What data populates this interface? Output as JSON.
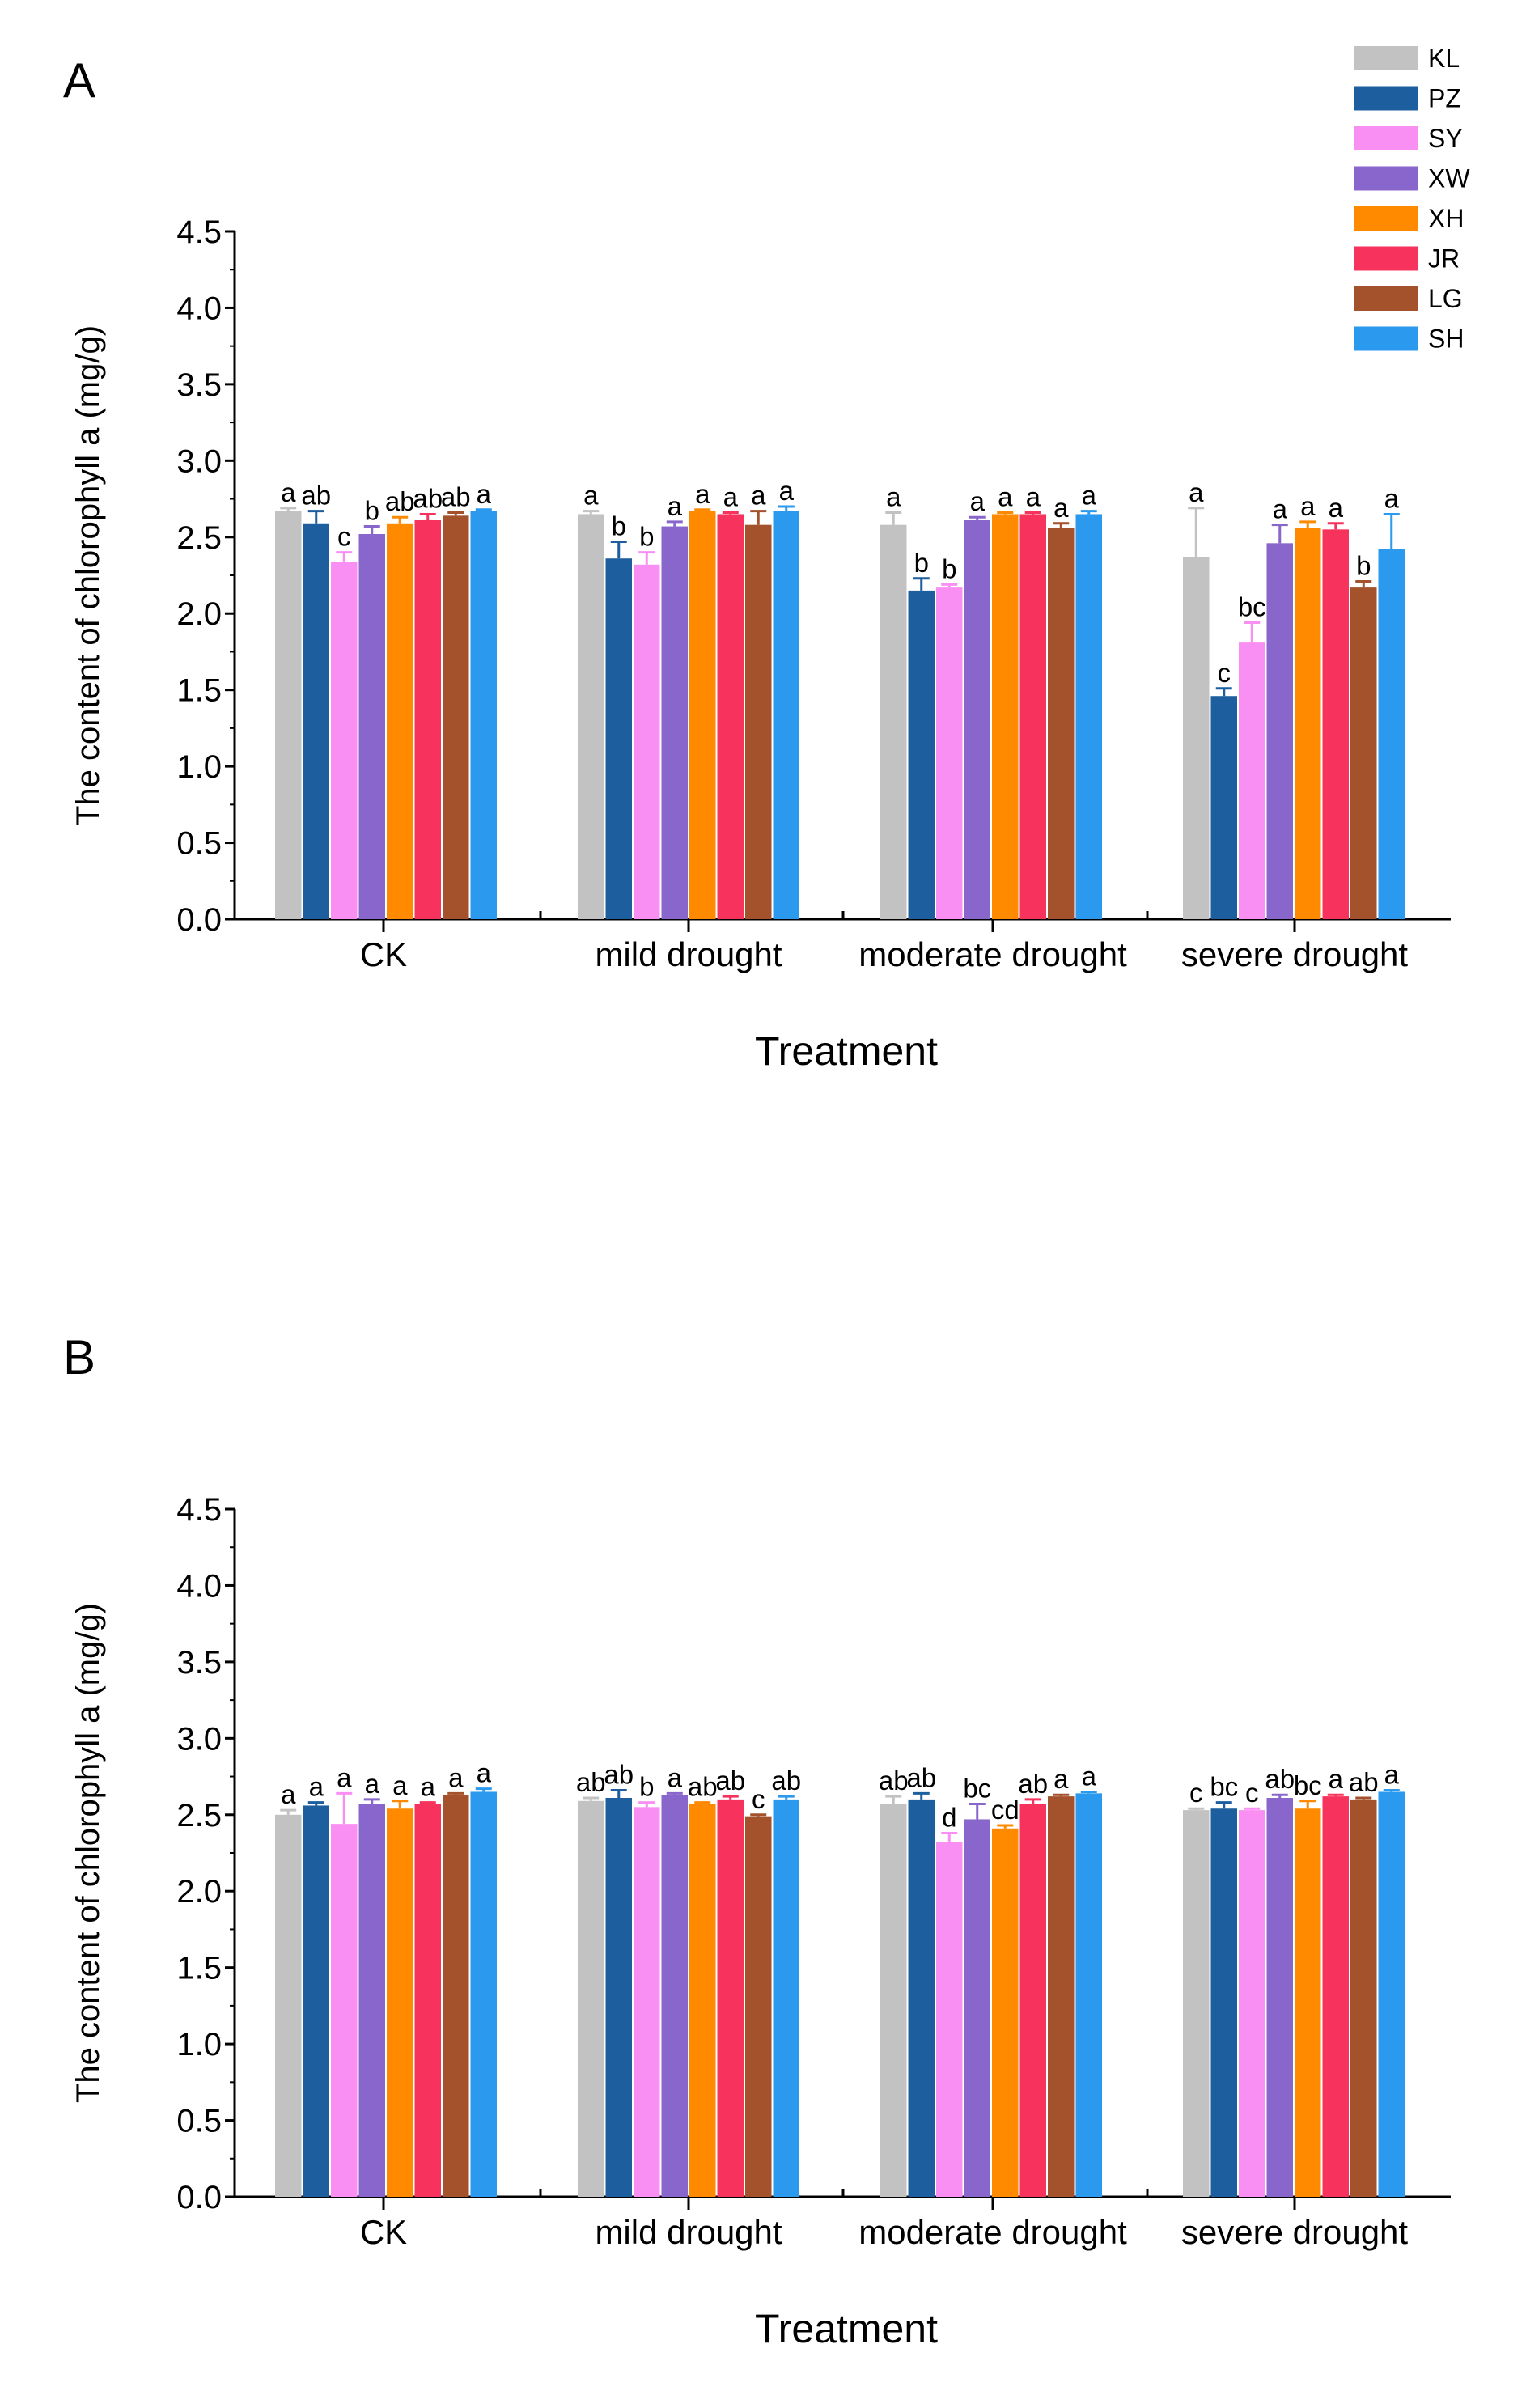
{
  "figure": {
    "panels": [
      "A",
      "B"
    ]
  },
  "legend": [
    {
      "name": "KL",
      "color": "#c2c2c2"
    },
    {
      "name": "PZ",
      "color": "#1c5e9e"
    },
    {
      "name": "SY",
      "color": "#f98ff3"
    },
    {
      "name": "XW",
      "color": "#8866cc"
    },
    {
      "name": "XH",
      "color": "#ff8a00"
    },
    {
      "name": "JR",
      "color": "#f7335d"
    },
    {
      "name": "LG",
      "color": "#a3522b"
    },
    {
      "name": "SH",
      "color": "#2b9aee"
    }
  ],
  "chart_data": [
    {
      "panel": "A",
      "type": "bar",
      "title": "",
      "ylabel": "The content of chlorophyll a (mg/g)",
      "xlabel": "Treatment",
      "ylim": [
        0,
        4.5
      ],
      "yticks": [
        "0.0",
        "0.5",
        "1.0",
        "1.5",
        "2.0",
        "2.5",
        "3.0",
        "3.5",
        "4.0",
        "4.5"
      ],
      "categories": [
        "CK",
        "mild drought",
        "moderate drought",
        "severe drought"
      ],
      "series": [
        {
          "name": "KL",
          "values": [
            2.67,
            2.65,
            2.58,
            2.37
          ],
          "errors": [
            0.02,
            0.02,
            0.08,
            0.32
          ],
          "labels": [
            "a",
            "a",
            "a",
            "a"
          ]
        },
        {
          "name": "PZ",
          "values": [
            2.59,
            2.36,
            2.15,
            1.46
          ],
          "errors": [
            0.08,
            0.11,
            0.08,
            0.05
          ],
          "labels": [
            "ab",
            "b",
            "b",
            "c"
          ]
        },
        {
          "name": "SY",
          "values": [
            2.34,
            2.32,
            2.17,
            1.81
          ],
          "errors": [
            0.06,
            0.08,
            0.02,
            0.13
          ],
          "labels": [
            "c",
            "b",
            "b",
            "bc"
          ]
        },
        {
          "name": "XW",
          "values": [
            2.52,
            2.57,
            2.61,
            2.46
          ],
          "errors": [
            0.05,
            0.03,
            0.02,
            0.12
          ],
          "labels": [
            "b",
            "a",
            "a",
            "a"
          ]
        },
        {
          "name": "XH",
          "values": [
            2.59,
            2.67,
            2.65,
            2.56
          ],
          "errors": [
            0.04,
            0.01,
            0.01,
            0.04
          ],
          "labels": [
            "ab",
            "a",
            "a",
            "a"
          ]
        },
        {
          "name": "JR",
          "values": [
            2.61,
            2.65,
            2.65,
            2.55
          ],
          "errors": [
            0.04,
            0.01,
            0.01,
            0.04
          ],
          "labels": [
            "ab",
            "a",
            "a",
            "a"
          ]
        },
        {
          "name": "LG",
          "values": [
            2.64,
            2.58,
            2.56,
            2.17
          ],
          "errors": [
            0.02,
            0.09,
            0.03,
            0.04
          ],
          "labels": [
            "ab",
            "a",
            "a",
            "b"
          ]
        },
        {
          "name": "SH",
          "values": [
            2.67,
            2.67,
            2.65,
            2.42
          ],
          "errors": [
            0.01,
            0.03,
            0.02,
            0.23
          ],
          "labels": [
            "a",
            "a",
            "a",
            "a"
          ]
        }
      ]
    },
    {
      "panel": "B",
      "type": "bar",
      "title": "",
      "ylabel": "The content of chlorophyll a (mg/g)",
      "xlabel": "Treatment",
      "ylim": [
        0,
        4.5
      ],
      "yticks": [
        "0.0",
        "0.5",
        "1.0",
        "1.5",
        "2.0",
        "2.5",
        "3.0",
        "3.5",
        "4.0",
        "4.5"
      ],
      "categories": [
        "CK",
        "mild drought",
        "moderate drought",
        "severe drought"
      ],
      "series": [
        {
          "name": "KL",
          "values": [
            2.5,
            2.59,
            2.57,
            2.53
          ],
          "errors": [
            0.03,
            0.02,
            0.05,
            0.01
          ],
          "labels": [
            "a",
            "ab",
            "ab",
            "c"
          ]
        },
        {
          "name": "PZ",
          "values": [
            2.56,
            2.61,
            2.6,
            2.54
          ],
          "errors": [
            0.02,
            0.05,
            0.04,
            0.04
          ],
          "labels": [
            "a",
            "ab",
            "ab",
            "bc"
          ]
        },
        {
          "name": "SY",
          "values": [
            2.44,
            2.55,
            2.32,
            2.53
          ],
          "errors": [
            0.2,
            0.03,
            0.06,
            0.01
          ],
          "labels": [
            "a",
            "b",
            "d",
            "c"
          ]
        },
        {
          "name": "XW",
          "values": [
            2.57,
            2.63,
            2.47,
            2.61
          ],
          "errors": [
            0.03,
            0.01,
            0.1,
            0.02
          ],
          "labels": [
            "a",
            "a",
            "bc",
            "ab"
          ]
        },
        {
          "name": "XH",
          "values": [
            2.54,
            2.57,
            2.41,
            2.54
          ],
          "errors": [
            0.05,
            0.01,
            0.02,
            0.05
          ],
          "labels": [
            "a",
            "ab",
            "cd",
            "bc"
          ]
        },
        {
          "name": "JR",
          "values": [
            2.57,
            2.6,
            2.57,
            2.62
          ],
          "errors": [
            0.01,
            0.02,
            0.03,
            0.01
          ],
          "labels": [
            "a",
            "ab",
            "ab",
            "a"
          ]
        },
        {
          "name": "LG",
          "values": [
            2.63,
            2.49,
            2.62,
            2.6
          ],
          "errors": [
            0.01,
            0.01,
            0.01,
            0.01
          ],
          "labels": [
            "a",
            "c",
            "a",
            "ab"
          ]
        },
        {
          "name": "SH",
          "values": [
            2.65,
            2.6,
            2.64,
            2.65
          ],
          "errors": [
            0.02,
            0.02,
            0.01,
            0.01
          ],
          "labels": [
            "a",
            "ab",
            "a",
            "a"
          ]
        }
      ]
    }
  ]
}
